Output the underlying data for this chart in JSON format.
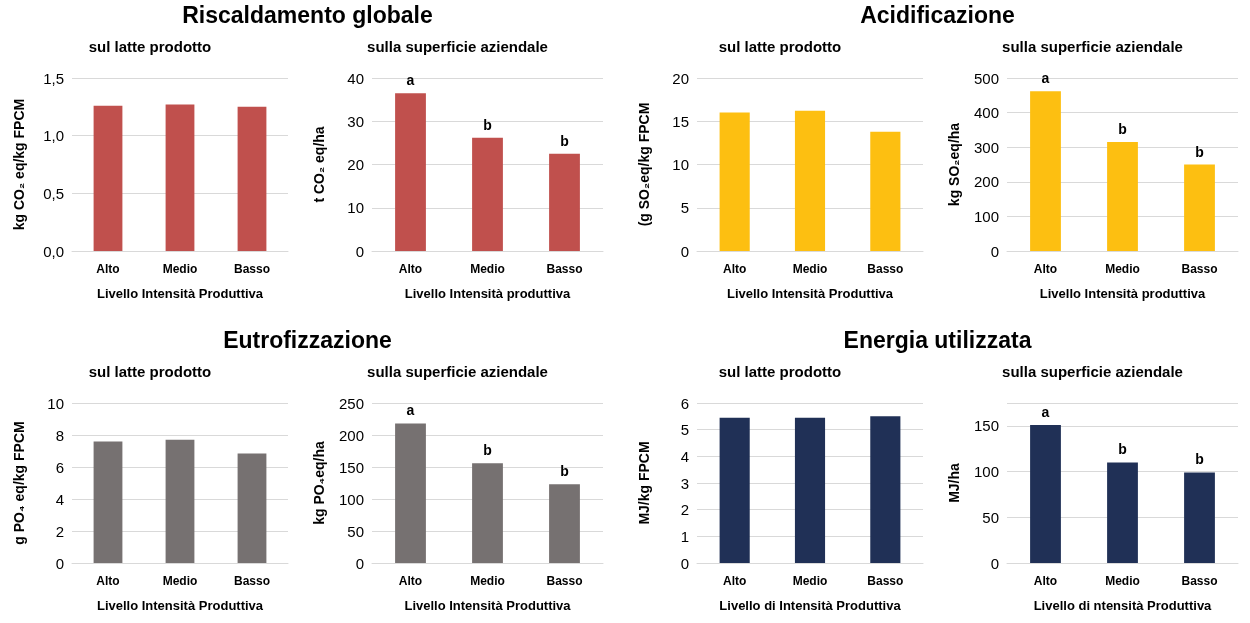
{
  "chart_data": [
    {
      "type": "bar",
      "title": "Riscaldamento globale",
      "subtitle": "sul latte prodotto",
      "xlabel": "Livello Intensità Produttiva",
      "ylabel": "kg CO₂ eq/kg FPCM",
      "categories": [
        "Alto",
        "Medio",
        "Basso"
      ],
      "values": [
        1.26,
        1.27,
        1.25
      ],
      "color": "#c0504d",
      "ylim": [
        0,
        1.5
      ],
      "yticks": [
        {
          "value": 0,
          "label": "0,0"
        },
        {
          "value": 0.5,
          "label": "0,5"
        },
        {
          "value": 1,
          "label": "1,0"
        },
        {
          "value": 1.5,
          "label": "1,5"
        }
      ],
      "grid": "y"
    },
    {
      "type": "bar",
      "subtitle": "sulla superficie aziendale",
      "xlabel": "Livello Intensità produttiva",
      "ylabel": "t CO₂ eq/ha",
      "categories": [
        "Alto",
        "Medio",
        "Basso"
      ],
      "values": [
        36.5,
        26.2,
        22.5
      ],
      "color": "#c0504d",
      "ylim": [
        0,
        40
      ],
      "yticks": [
        0,
        10,
        20,
        30,
        40
      ],
      "grid": "y",
      "annotations": [
        {
          "text": "a",
          "x": "Alto",
          "y": 36.5
        },
        {
          "text": "b",
          "x": "Medio",
          "y": 26.2
        },
        {
          "text": "b",
          "x": "Basso",
          "y": 22.5
        }
      ]
    },
    {
      "type": "bar",
      "title": "Acidificazione",
      "subtitle": "sul latte prodotto",
      "xlabel": "Livello Intensità Produttiva",
      "ylabel": "(g SO₂eq/kg FPCM",
      "categories": [
        "Alto",
        "Medio",
        "Basso"
      ],
      "values": [
        16.0,
        16.2,
        13.8
      ],
      "color": "#fdbf11",
      "ylim": [
        0,
        20
      ],
      "yticks": [
        0,
        5,
        10,
        15,
        20
      ],
      "grid": "y"
    },
    {
      "type": "bar",
      "subtitle": "sulla superficie aziendale",
      "xlabel": "Livello Intensità produttiva",
      "ylabel": "kg SO₂eq/ha",
      "categories": [
        "Alto",
        "Medio",
        "Basso"
      ],
      "values": [
        462,
        315,
        250
      ],
      "color": "#fdbf11",
      "ylim": [
        0,
        500
      ],
      "yticks": [
        0,
        100,
        200,
        300,
        400,
        500
      ],
      "grid": "y",
      "annotations": [
        {
          "text": "a",
          "x": "Alto",
          "y": 462
        },
        {
          "text": "b",
          "x": "Medio",
          "y": 315
        },
        {
          "text": "b",
          "x": "Basso",
          "y": 250
        }
      ]
    },
    {
      "type": "bar",
      "title": "Eutrofizzazione",
      "subtitle": "sul latte prodotto",
      "xlabel": "Livello Intensità Produttiva",
      "ylabel": "g PO₄ eq/kg FPCM",
      "categories": [
        "Alto",
        "Medio",
        "Basso"
      ],
      "values": [
        7.6,
        7.7,
        6.85
      ],
      "color": "#767171",
      "ylim": [
        0,
        10
      ],
      "yticks": [
        0,
        2,
        4,
        6,
        8,
        10
      ],
      "grid": "y"
    },
    {
      "type": "bar",
      "subtitle": "sulla superficie aziendale",
      "xlabel": "Livello Intensità Produttiva",
      "ylabel": "kg PO₄eq/ha",
      "categories": [
        "Alto",
        "Medio",
        "Basso"
      ],
      "values": [
        218,
        156,
        123
      ],
      "color": "#767171",
      "ylim": [
        0,
        250
      ],
      "yticks": [
        0,
        50,
        100,
        150,
        200,
        250
      ],
      "grid": "y",
      "annotations": [
        {
          "text": "a",
          "x": "Alto",
          "y": 218
        },
        {
          "text": "b",
          "x": "Medio",
          "y": 156
        },
        {
          "text": "b",
          "x": "Basso",
          "y": 123
        }
      ]
    },
    {
      "type": "bar",
      "title": "Energia utilizzata",
      "subtitle": "sul latte prodotto",
      "xlabel": "Livello di Intensità Produttiva",
      "ylabel": "MJ/kg FPCM",
      "categories": [
        "Alto",
        "Medio",
        "Basso"
      ],
      "values": [
        5.45,
        5.45,
        5.5
      ],
      "color": "#203056",
      "ylim": [
        0,
        6
      ],
      "yticks": [
        0,
        1,
        2,
        3,
        4,
        5,
        6
      ],
      "grid": "y"
    },
    {
      "type": "bar",
      "subtitle": "sulla superficie aziendale",
      "xlabel": "Livello di ntensità Produttiva",
      "ylabel": "MJ/ha",
      "categories": [
        "Alto",
        "Medio",
        "Basso"
      ],
      "values": [
        151,
        110,
        99
      ],
      "color": "#203056",
      "ylim": [
        0,
        175
      ],
      "yticks": [
        0,
        50,
        100,
        150,
        {
          "value": 175,
          "label": null
        }
      ],
      "grid": "y",
      "annotations": [
        {
          "text": "a",
          "x": "Alto",
          "y": 151
        },
        {
          "text": "b",
          "x": "Medio",
          "y": 110
        },
        {
          "text": "b",
          "x": "Basso",
          "y": 99
        }
      ]
    }
  ]
}
